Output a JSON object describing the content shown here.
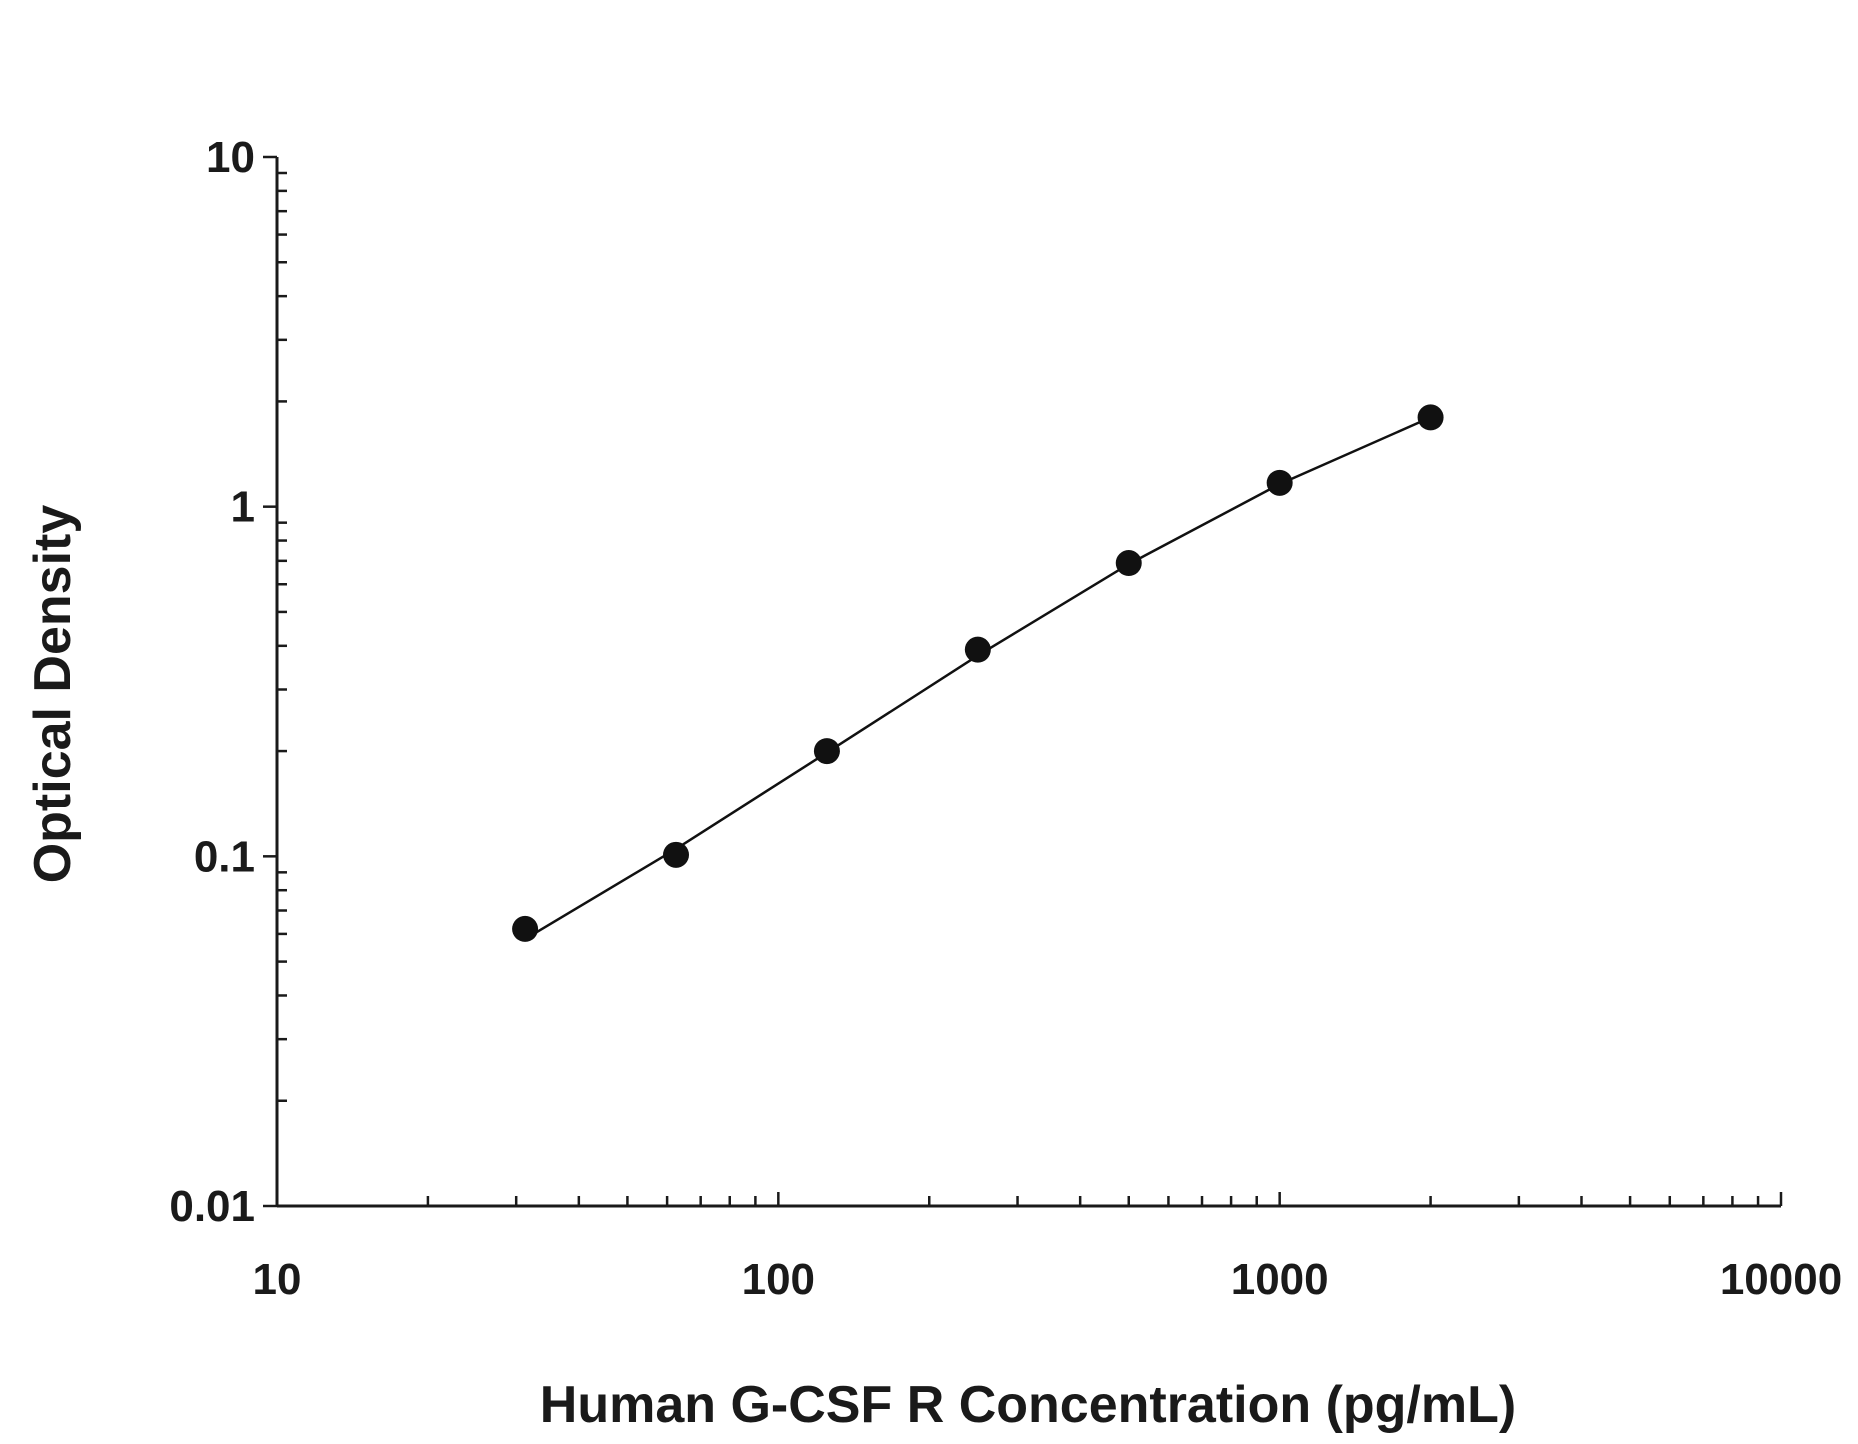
{
  "chart_data": {
    "type": "scatter",
    "title": "",
    "xlabel": "Human G-CSF R Concentration (pg/mL)",
    "ylabel": "Optical Density",
    "x_scale": "log",
    "y_scale": "log",
    "xlim": [
      10,
      10000
    ],
    "ylim": [
      0.01,
      10
    ],
    "x_ticks": [
      10,
      100,
      1000,
      10000
    ],
    "x_tick_labels": [
      "10",
      "100",
      "1000",
      "10000"
    ],
    "y_ticks": [
      0.01,
      0.1,
      1,
      10
    ],
    "y_tick_labels": [
      "0.01",
      "0.1",
      "1",
      "10"
    ],
    "grid": false,
    "legend": "none",
    "marker_color": "#111111",
    "line_color": "#111111",
    "series": [
      {
        "x": [
          31.25,
          62.5,
          125,
          250,
          500,
          1000,
          2000
        ],
        "y": [
          0.062,
          0.101,
          0.2,
          0.39,
          0.69,
          1.17,
          1.8
        ]
      }
    ],
    "fit_curve": {
      "x": [
        31.25,
        62.5,
        125,
        250,
        500,
        1000,
        2000
      ],
      "y": [
        0.058,
        0.105,
        0.198,
        0.375,
        0.685,
        1.16,
        1.8
      ]
    }
  }
}
